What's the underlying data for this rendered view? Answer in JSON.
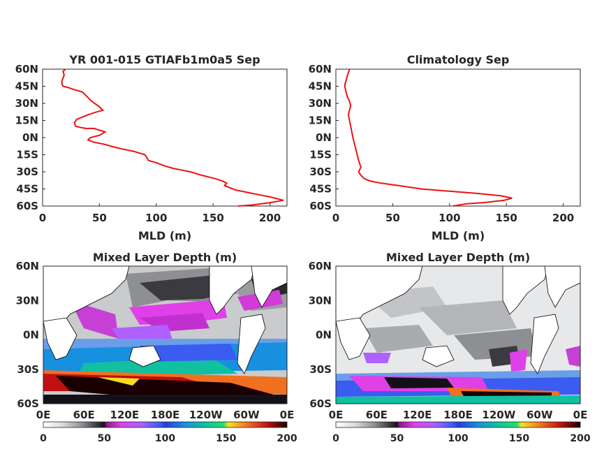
{
  "chart_data": [
    {
      "type": "line",
      "title": "YR 001-015 GTIAFb1m0a5 Sep",
      "xlabel": "MLD (m)",
      "ylabel": "",
      "xlim": [
        0,
        215
      ],
      "ylim": [
        -60,
        60
      ],
      "xticks": [
        "0",
        "50",
        "100",
        "150",
        "200"
      ],
      "yticks": [
        "60N",
        "45N",
        "30N",
        "15N",
        "0N",
        "15S",
        "30S",
        "45S",
        "60S"
      ],
      "color": "#ee1111",
      "series": [
        {
          "x": [
            20,
            18,
            19,
            18,
            17,
            17,
            18,
            22,
            28,
            35,
            38,
            43,
            50,
            53,
            46,
            40,
            35,
            30,
            28,
            29,
            33,
            38,
            45,
            55,
            50,
            42,
            40,
            45,
            55,
            62,
            70,
            80,
            90,
            92,
            93,
            100,
            108,
            115,
            120,
            130,
            140,
            148,
            152,
            155,
            158,
            162,
            160,
            165,
            170,
            180,
            190,
            200,
            212,
            200,
            185,
            172
          ],
          "y": [
            60,
            58,
            55,
            52,
            50,
            47,
            45,
            44,
            42,
            40,
            37,
            32,
            27,
            24,
            22,
            20,
            18,
            16,
            13,
            10,
            9,
            8,
            8,
            5,
            2,
            0,
            -2,
            -4,
            -6,
            -8,
            -10,
            -12,
            -15,
            -18,
            -20,
            -22,
            -25,
            -27,
            -28,
            -30,
            -33,
            -35,
            -36,
            -37,
            -38,
            -40,
            -42,
            -44,
            -46,
            -48,
            -50,
            -52,
            -55,
            -57,
            -59,
            -60
          ]
        }
      ]
    },
    {
      "type": "line",
      "title": "Climatology Sep",
      "xlabel": "MLD (m)",
      "ylabel": "",
      "xlim": [
        0,
        215
      ],
      "ylim": [
        -60,
        60
      ],
      "xticks": [
        "0",
        "50",
        "100",
        "150",
        "200"
      ],
      "yticks": [
        "60N",
        "45N",
        "30N",
        "15N",
        "0N",
        "15S",
        "30S",
        "45S",
        "60S"
      ],
      "color": "#ee1111",
      "series": [
        {
          "x": [
            12,
            11,
            10,
            9,
            8,
            8,
            9,
            10,
            12,
            13,
            12,
            11,
            12,
            13,
            14,
            15,
            16,
            17,
            18,
            19,
            20,
            21,
            22,
            21,
            20,
            22,
            25,
            30,
            40,
            55,
            75,
            100,
            125,
            145,
            155,
            148,
            130,
            115,
            103
          ],
          "y": [
            60,
            57,
            54,
            50,
            47,
            44,
            40,
            36,
            32,
            28,
            24,
            20,
            15,
            10,
            5,
            0,
            -4,
            -8,
            -12,
            -16,
            -20,
            -23,
            -26,
            -28,
            -30,
            -33,
            -36,
            -38,
            -40,
            -42,
            -45,
            -47,
            -49,
            -51,
            -53,
            -55,
            -57,
            -58,
            -60
          ]
        }
      ]
    },
    {
      "type": "heatmap",
      "title": "Mixed Layer Depth (m)",
      "yticks": [
        "60N",
        "30N",
        "0N",
        "30S",
        "60S"
      ],
      "xticks": [
        "0E",
        "60E",
        "120E",
        "180E",
        "120W",
        "60W",
        "0E"
      ],
      "colorbar": {
        "ticks": [
          "0",
          "50",
          "100",
          "150",
          "200"
        ],
        "range": [
          0,
          200
        ]
      }
    },
    {
      "type": "heatmap",
      "title": "Mixed Layer Depth (m)",
      "yticks": [
        "60N",
        "30N",
        "0N",
        "30S",
        "60S"
      ],
      "xticks": [
        "0E",
        "60E",
        "120E",
        "180E",
        "120W",
        "60W",
        "0E"
      ],
      "colorbar": {
        "ticks": [
          "0",
          "50",
          "100",
          "150",
          "200"
        ],
        "range": [
          0,
          200
        ]
      }
    }
  ]
}
